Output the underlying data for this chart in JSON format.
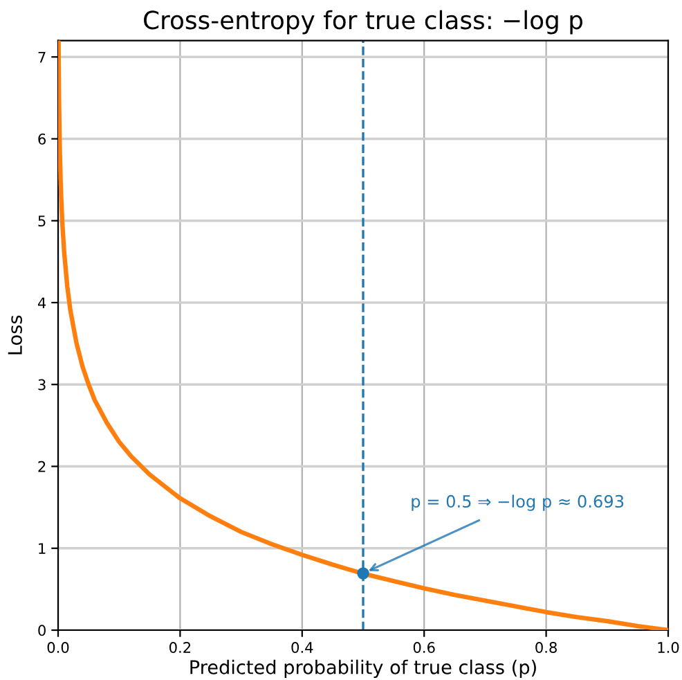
{
  "chart_data": {
    "type": "line",
    "title": "Cross-entropy for true class: −log p",
    "xlabel": "Predicted probability of true class (p)",
    "ylabel": "Loss",
    "series": [
      {
        "color": "#ff7f0e",
        "x": [
          0.00076,
          0.001,
          0.0015,
          0.002,
          0.003,
          0.004,
          0.005,
          0.007,
          0.01,
          0.015,
          0.02,
          0.03,
          0.04,
          0.05,
          0.06,
          0.08,
          0.1,
          0.12,
          0.15,
          0.2,
          0.25,
          0.3,
          0.35,
          0.4,
          0.45,
          0.5,
          0.55,
          0.6,
          0.65,
          0.7,
          0.75,
          0.8,
          0.85,
          0.9,
          0.95,
          1.0
        ],
        "values": [
          7.18,
          6.91,
          6.5,
          6.21,
          5.81,
          5.52,
          5.3,
          4.96,
          4.61,
          4.2,
          3.91,
          3.51,
          3.22,
          3.0,
          2.81,
          2.53,
          2.3,
          2.12,
          1.9,
          1.61,
          1.39,
          1.2,
          1.05,
          0.92,
          0.8,
          0.69,
          0.6,
          0.51,
          0.43,
          0.36,
          0.29,
          0.22,
          0.16,
          0.11,
          0.05,
          0.0
        ]
      },
      {
        "type": "scatter",
        "color": "#1f77b4",
        "marker": "circle",
        "x": [
          0.5
        ],
        "values": [
          0.693
        ]
      }
    ],
    "ref_lines": [
      {
        "axis": "x",
        "value": 0.5,
        "color": "#1f77b4",
        "line_style": "dashed"
      }
    ],
    "annotations": [
      {
        "text": "p = 0.5 ⇒ −log p ≈ 0.693",
        "x": 0.5,
        "y": 0.693
      }
    ],
    "xlim": [
      0,
      1
    ],
    "ylim": [
      0,
      7.2
    ],
    "xticks": [
      {
        "value": 0,
        "label": "0.0"
      },
      {
        "value": 0.2,
        "label": "0.2"
      },
      {
        "value": 0.4,
        "label": "0.4"
      },
      {
        "value": 0.6,
        "label": "0.6"
      },
      {
        "value": 0.8,
        "label": "0.8"
      },
      {
        "value": 1,
        "label": "1.0"
      }
    ],
    "yticks": [
      0,
      1,
      2,
      3,
      4,
      5,
      6,
      7
    ],
    "grid": true,
    "marker": "none",
    "line_style": "solid"
  }
}
